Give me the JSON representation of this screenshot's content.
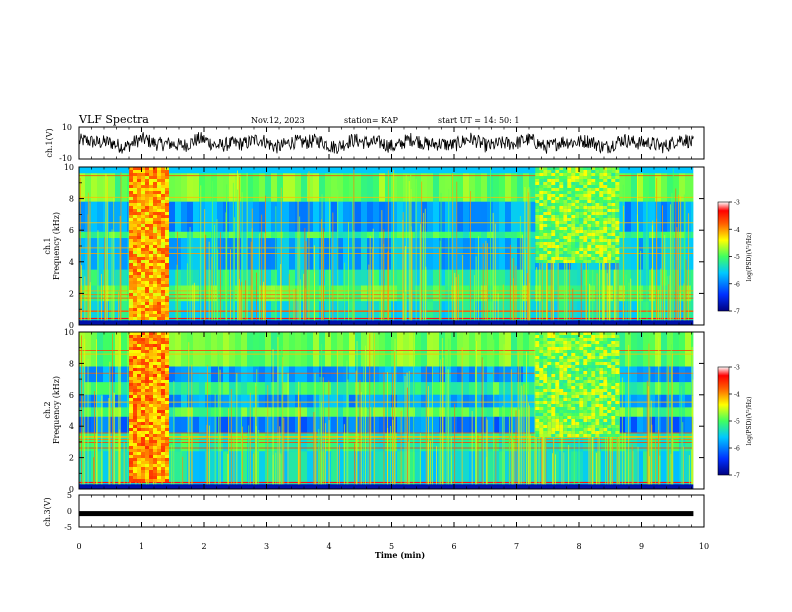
{
  "header": {
    "title": "VLF Spectra",
    "date": "Nov.12, 2023",
    "station": "station= KAP",
    "start": "start  UT  =   14: 50: 1"
  },
  "chart_data": [
    {
      "type": "line",
      "id": "ch1_waveform",
      "ylabel": "ch.1(V)",
      "ylim": [
        -10,
        10
      ],
      "yticks": [
        "10",
        "-10"
      ],
      "x_range": [
        0,
        9.83
      ],
      "trace_color": "#000000",
      "description_values": "dense noisy waveform oscillating roughly between -7 and +7 V"
    },
    {
      "type": "heatmap",
      "id": "ch1_spectrogram",
      "label": "ch.1",
      "ylabel": "Frequency (kHz)",
      "ylim": [
        0,
        10
      ],
      "yticks": [
        "0",
        "2",
        "4",
        "6",
        "8",
        "10"
      ],
      "colorbar": {
        "label": "log(PSD)(V²/Hz)",
        "range": [
          -7,
          -3
        ],
        "ticks": [
          "-3",
          "-4",
          "-5",
          "-6",
          "-7"
        ],
        "colors": [
          "#000080",
          "#0040ff",
          "#00c8ff",
          "#40ff80",
          "#ffff00",
          "#ff8000",
          "#ff0000",
          "#ffffff"
        ]
      },
      "bands": [
        {
          "freq": [
            7.8,
            9.6
          ],
          "level": -4.9,
          "label": "upper green band"
        },
        {
          "freq": [
            5.9,
            7.8
          ],
          "level": -5.8,
          "label": "blue band"
        },
        {
          "freq": [
            5.5,
            5.9
          ],
          "level": -5.1
        },
        {
          "freq": [
            3.5,
            5.5
          ],
          "level": -5.7
        },
        {
          "freq": [
            2.5,
            3.5
          ],
          "level": -5.3
        },
        {
          "freq": [
            1.5,
            2.5
          ],
          "level": -5.0
        },
        {
          "freq": [
            0.3,
            1.5
          ],
          "level": -5.4
        }
      ],
      "bursts": [
        {
          "t": [
            0.8,
            1.38
          ],
          "freq": [
            0.5,
            10
          ],
          "level": -4.1
        },
        {
          "t": [
            7.3,
            8.6
          ],
          "freq": [
            4.0,
            10
          ],
          "level": -4.8
        }
      ]
    },
    {
      "type": "heatmap",
      "id": "ch2_spectrogram",
      "label": "ch.2",
      "ylabel": "Frequency (kHz)",
      "ylim": [
        0,
        10
      ],
      "yticks": [
        "0",
        "2",
        "4",
        "6",
        "8",
        "10"
      ],
      "colorbar": {
        "label": "log(PSD)(V²/Hz)",
        "range": [
          -7,
          -3
        ],
        "ticks": [
          "-3",
          "-4",
          "-5",
          "-6",
          "-7"
        ]
      },
      "bands": [
        {
          "freq": [
            7.8,
            10
          ],
          "level": -4.9
        },
        {
          "freq": [
            6.8,
            7.8
          ],
          "level": -5.8
        },
        {
          "freq": [
            6.0,
            6.8
          ],
          "level": -5.1
        },
        {
          "freq": [
            5.2,
            6.0
          ],
          "level": -5.8
        },
        {
          "freq": [
            4.6,
            5.2
          ],
          "level": -5.0
        },
        {
          "freq": [
            3.6,
            4.6
          ],
          "level": -6.0
        },
        {
          "freq": [
            2.4,
            3.6
          ],
          "level": -5.2
        },
        {
          "freq": [
            0.3,
            2.4
          ],
          "level": -5.4
        }
      ],
      "bursts": [
        {
          "t": [
            0.8,
            1.38
          ],
          "freq": [
            0.5,
            10
          ],
          "level": -4.0
        },
        {
          "t": [
            7.3,
            8.6
          ],
          "freq": [
            3.5,
            10
          ],
          "level": -4.8
        }
      ]
    },
    {
      "type": "line",
      "id": "ch3_waveform",
      "ylabel": "ch.3(V)",
      "ylim": [
        -5,
        5
      ],
      "yticks": [
        "5",
        "0",
        "-5"
      ],
      "value": -0.8,
      "x_range": [
        0,
        9.83
      ]
    }
  ],
  "xaxis": {
    "label": "Time (min)",
    "range": [
      0,
      10
    ],
    "ticks": [
      "0",
      "1",
      "2",
      "3",
      "4",
      "5",
      "6",
      "7",
      "8",
      "9",
      "10"
    ]
  }
}
